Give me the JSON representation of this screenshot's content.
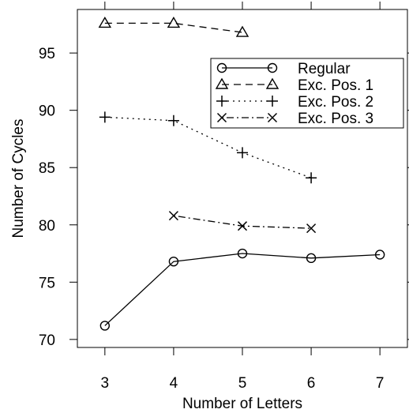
{
  "chart_data": {
    "type": "line",
    "title": "",
    "xlabel": "Number of Letters",
    "ylabel": "Number of Cycles",
    "xlim": [
      2.6,
      7.4
    ],
    "ylim": [
      69.3,
      98.8
    ],
    "x_ticks": [
      3,
      4,
      5,
      6,
      7
    ],
    "y_ticks": [
      70,
      75,
      80,
      85,
      90,
      95
    ],
    "grid": false,
    "legend_position": "top-right",
    "series": [
      {
        "name": "Regular",
        "marker": "circle",
        "line_style": "solid",
        "x": [
          3,
          4,
          5,
          6,
          7
        ],
        "y": [
          71.2,
          76.8,
          77.5,
          77.1,
          77.4
        ]
      },
      {
        "name": "Exc. Pos. 1",
        "marker": "triangle",
        "line_style": "dashed",
        "x": [
          3,
          4,
          5
        ],
        "y": [
          97.6,
          97.6,
          96.8
        ]
      },
      {
        "name": "Exc. Pos. 2",
        "marker": "plus",
        "line_style": "dotted",
        "x": [
          3,
          4,
          5,
          6
        ],
        "y": [
          89.4,
          89.1,
          86.3,
          84.1
        ]
      },
      {
        "name": "Exc. Pos. 3",
        "marker": "cross",
        "line_style": "dashdot",
        "x": [
          4,
          5,
          6
        ],
        "y": [
          80.8,
          79.9,
          79.7
        ]
      }
    ]
  }
}
